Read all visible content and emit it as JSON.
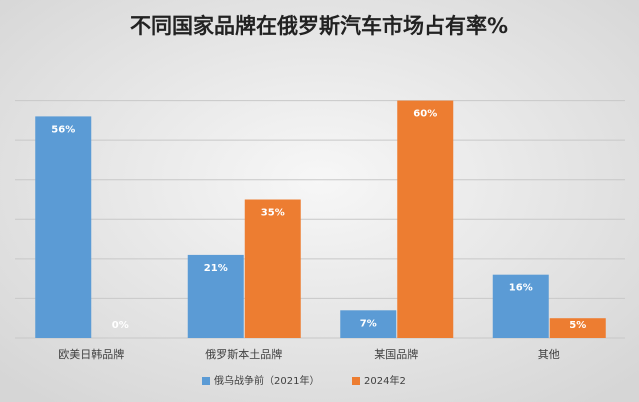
{
  "chart_data": {
    "type": "bar",
    "title": "不同国家品牌在俄罗斯汽车市场占有率%",
    "categories": [
      "欧美日韩品牌",
      "俄罗斯本土品牌",
      "某国品牌",
      "其他"
    ],
    "series": [
      {
        "name": "俄乌战争前（2021年）",
        "color": "#5b9bd5",
        "values": [
          56,
          21,
          7,
          16
        ],
        "value_labels": [
          "56%",
          "21%",
          "7%",
          "16%"
        ]
      },
      {
        "name": "2024年2",
        "color": "#ed7d31",
        "values": [
          0,
          35,
          60,
          5
        ],
        "value_labels": [
          "0%",
          "35%",
          "60%",
          "5%"
        ]
      }
    ],
    "ylim": [
      0,
      70
    ],
    "yticks": [
      0,
      10,
      20,
      30,
      40,
      50,
      60
    ],
    "grid": true,
    "legend": "bottom"
  }
}
